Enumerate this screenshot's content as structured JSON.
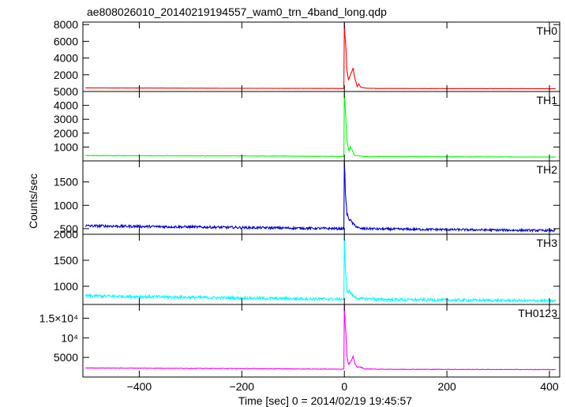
{
  "title": "ae808026010_20140219194557_wam0_trn_4band_long.qdp",
  "xlabel": "Time [sec] 0 = 2014/02/19 19:45:57",
  "ylabel": "Counts/sec",
  "chart_data": {
    "type": "line",
    "title": "ae808026010_20140219194557_wam0_trn_4band_long.qdp",
    "xlabel": "Time [sec] 0 = 2014/02/19 19:45:57",
    "ylabel": "Counts/sec",
    "xlim": [
      -510,
      420
    ],
    "x_ticks": [
      -400,
      -200,
      0,
      200,
      400
    ],
    "x_tick_labels": [
      "−400",
      "−200",
      "0",
      "200",
      "400"
    ],
    "grid": false,
    "panels": [
      {
        "name": "TH0",
        "color": "#ff0000",
        "ylim": [
          0,
          8300
        ],
        "y_ticks": [
          2000,
          4000,
          6000,
          8000
        ],
        "y_tick_labels": [
          "2000",
          "4000",
          "6000",
          "8000"
        ],
        "baseline": [
          [
            -500,
            430
          ],
          [
            -200,
            380
          ],
          [
            0,
            360
          ],
          [
            400,
            340
          ]
        ],
        "noise": 0.03,
        "features": [
          [
            0,
            8400
          ],
          [
            1,
            6800
          ],
          [
            3,
            5200
          ],
          [
            5,
            2500
          ],
          [
            8,
            1400
          ],
          [
            14,
            2300
          ],
          [
            17,
            2800
          ],
          [
            20,
            1700
          ],
          [
            25,
            600
          ],
          [
            28,
            900
          ],
          [
            32,
            500
          ],
          [
            45,
            380
          ]
        ]
      },
      {
        "name": "TH1",
        "color": "#00ff00",
        "ylim": [
          0,
          5000
        ],
        "y_ticks": [
          1000,
          2000,
          3000,
          4000,
          5000
        ],
        "y_tick_labels": [
          "1000",
          "2000",
          "3000",
          "4000",
          "5000"
        ],
        "baseline": [
          [
            -500,
            380
          ],
          [
            -200,
            360
          ],
          [
            0,
            320
          ],
          [
            400,
            280
          ]
        ],
        "noise": 0.05,
        "features": [
          [
            0,
            4800
          ],
          [
            2,
            3800
          ],
          [
            5,
            1500
          ],
          [
            9,
            700
          ],
          [
            12,
            1000
          ],
          [
            15,
            800
          ],
          [
            20,
            400
          ],
          [
            40,
            310
          ]
        ]
      },
      {
        "name": "TH2",
        "color": "#0000cc",
        "ylim": [
          380,
          1950
        ],
        "y_ticks": [
          500,
          1000,
          1500
        ],
        "y_tick_labels": [
          "500",
          "1000",
          "1500"
        ],
        "baseline": [
          [
            -500,
            560
          ],
          [
            -250,
            530
          ],
          [
            0,
            500
          ],
          [
            400,
            460
          ]
        ],
        "noise": 0.05,
        "features": [
          [
            0,
            1920
          ],
          [
            2,
            1300
          ],
          [
            5,
            800
          ],
          [
            10,
            700
          ],
          [
            18,
            590
          ],
          [
            30,
            500
          ]
        ]
      },
      {
        "name": "TH3",
        "color": "#00ffff",
        "ylim": [
          650,
          2000
        ],
        "y_ticks": [
          1000,
          1500,
          2000
        ],
        "y_tick_labels": [
          "1000",
          "1500",
          "2000"
        ],
        "baseline": [
          [
            -500,
            815
          ],
          [
            -250,
            780
          ],
          [
            0,
            750
          ],
          [
            400,
            720
          ]
        ],
        "noise": 0.035,
        "features": [
          [
            0,
            1980
          ],
          [
            2,
            1300
          ],
          [
            5,
            920
          ],
          [
            10,
            900
          ],
          [
            18,
            800
          ],
          [
            30,
            760
          ]
        ]
      },
      {
        "name": "TH0123",
        "color": "#ff00ff",
        "ylim": [
          0,
          18500
        ],
        "y_ticks": [
          5000,
          10000,
          15000
        ],
        "y_tick_labels": [
          "5000",
          "10⁴",
          "1.5×10⁴"
        ],
        "baseline": [
          [
            -500,
            2300
          ],
          [
            -200,
            2150
          ],
          [
            0,
            2000
          ],
          [
            400,
            1900
          ]
        ],
        "noise": 0.03,
        "features": [
          [
            0,
            18400
          ],
          [
            1,
            15000
          ],
          [
            3,
            11000
          ],
          [
            5,
            5500
          ],
          [
            8,
            3200
          ],
          [
            14,
            4200
          ],
          [
            17,
            5200
          ],
          [
            21,
            3300
          ],
          [
            25,
            2500
          ],
          [
            30,
            2600
          ],
          [
            40,
            2050
          ]
        ]
      }
    ]
  }
}
